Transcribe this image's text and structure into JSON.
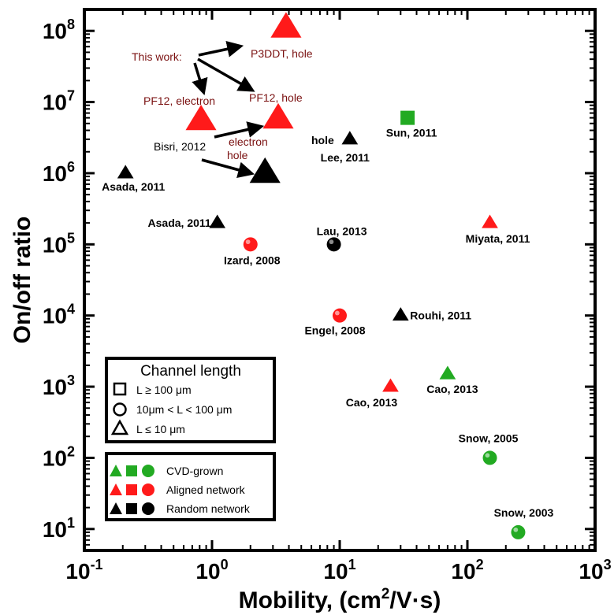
{
  "chart_data": {
    "type": "scatter",
    "xlabel_main": "Mobility, (cm",
    "xlabel_sup": "2",
    "xlabel_tail": "/V·s)",
    "ylabel": "On/off ratio",
    "x_scale": "log",
    "y_scale": "log",
    "xlim": [
      0.1,
      1000
    ],
    "ylim": [
      5,
      200000000
    ],
    "x_ticks": [
      {
        "value": 0.1,
        "base": "10",
        "exp": "-1"
      },
      {
        "value": 1,
        "base": "10",
        "exp": "0"
      },
      {
        "value": 10,
        "base": "10",
        "exp": "1"
      },
      {
        "value": 100,
        "base": "10",
        "exp": "2"
      },
      {
        "value": 1000,
        "base": "10",
        "exp": "3"
      }
    ],
    "y_ticks": [
      {
        "value": 10,
        "base": "10",
        "exp": "1"
      },
      {
        "value": 100,
        "base": "10",
        "exp": "2"
      },
      {
        "value": 1000,
        "base": "10",
        "exp": "3"
      },
      {
        "value": 10000,
        "base": "10",
        "exp": "4"
      },
      {
        "value": 100000,
        "base": "10",
        "exp": "5"
      },
      {
        "value": 1000000,
        "base": "10",
        "exp": "6"
      },
      {
        "value": 10000000,
        "base": "10",
        "exp": "7"
      },
      {
        "value": 100000000,
        "base": "10",
        "exp": "8"
      }
    ],
    "grid": false,
    "colors": {
      "cvd": "#22aa22",
      "aligned": "#ff1a1a",
      "random": "#000000",
      "note": "#7a1010"
    },
    "points": [
      {
        "x": 3.8,
        "y": 110000000,
        "shape": "triangle",
        "group": "aligned",
        "big": true
      },
      {
        "x": 0.82,
        "y": 5500000,
        "shape": "triangle",
        "group": "aligned",
        "big": true
      },
      {
        "x": 3.3,
        "y": 5800000,
        "shape": "triangle",
        "group": "aligned",
        "big": true
      },
      {
        "x": 2.6,
        "y": 1000000,
        "shape": "triangle",
        "group": "random",
        "big": true
      },
      {
        "x": 0.21,
        "y": 1000000,
        "shape": "triangle",
        "group": "random",
        "label": "Asada, 2011"
      },
      {
        "x": 1.1,
        "y": 200000,
        "shape": "triangle",
        "group": "random",
        "label": "Asada, 2011"
      },
      {
        "x": 12,
        "y": 3000000,
        "shape": "triangle",
        "group": "random",
        "label": "Lee, 2011"
      },
      {
        "x": 34,
        "y": 6000000,
        "shape": "square",
        "group": "cvd",
        "label": "Sun, 2011"
      },
      {
        "x": 150,
        "y": 200000,
        "shape": "triangle",
        "group": "aligned",
        "label": "Miyata, 2011"
      },
      {
        "x": 2.0,
        "y": 100000,
        "shape": "circle",
        "group": "aligned",
        "label": "Izard, 2008"
      },
      {
        "x": 9.0,
        "y": 100000,
        "shape": "circle",
        "group": "random",
        "label": "Lau, 2013"
      },
      {
        "x": 10,
        "y": 10000,
        "shape": "circle",
        "group": "aligned",
        "label": "Engel, 2008"
      },
      {
        "x": 30,
        "y": 10000,
        "shape": "triangle",
        "group": "random",
        "label": "Rouhi, 2011"
      },
      {
        "x": 25,
        "y": 1000,
        "shape": "triangle",
        "group": "aligned",
        "label": "Cao, 2013"
      },
      {
        "x": 70,
        "y": 1500,
        "shape": "triangle",
        "group": "cvd",
        "label": "Cao, 2013"
      },
      {
        "x": 150,
        "y": 100,
        "shape": "circle",
        "group": "cvd",
        "label": "Snow, 2005"
      },
      {
        "x": 250,
        "y": 9,
        "shape": "circle",
        "group": "cvd",
        "label": "Snow, 2003"
      }
    ],
    "annotations": {
      "this_work": "This work:",
      "p3ddt": "P3DDT, hole",
      "pf12_electron": "PF12, electron",
      "pf12_hole": "PF12, hole",
      "bisri": "Bisri, 2012",
      "electron": "electron",
      "hole": "hole",
      "lee_hole": "hole"
    },
    "legend_shapes": {
      "title": "Channel length",
      "items": [
        "L ≥ 100 μm",
        "10μm < L < 100 μm",
        "L ≤ 10 μm"
      ]
    },
    "legend_colors": {
      "items": [
        "CVD-grown",
        "Aligned network",
        "Random network"
      ]
    }
  }
}
